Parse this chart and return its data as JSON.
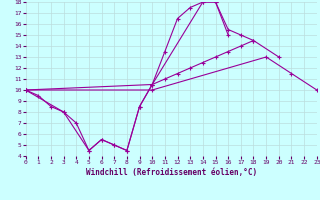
{
  "xlabel": "Windchill (Refroidissement éolien,°C)",
  "series": [
    {
      "x": [
        0,
        1,
        2,
        3,
        4,
        5,
        6,
        7,
        8,
        9,
        10,
        11,
        12,
        13,
        14,
        15,
        16
      ],
      "y": [
        10,
        9.5,
        8.5,
        8.0,
        7.0,
        4.5,
        5.5,
        5.0,
        4.5,
        8.5,
        10.5,
        13.5,
        16.5,
        17.5,
        18.0,
        18.0,
        15.0
      ]
    },
    {
      "x": [
        0,
        3,
        5,
        6,
        7,
        8,
        9,
        10,
        14,
        15,
        16,
        17,
        18
      ],
      "y": [
        10,
        8.0,
        4.5,
        5.5,
        5.0,
        4.5,
        8.5,
        10.5,
        18.0,
        18.0,
        15.5,
        15.0,
        14.5
      ]
    },
    {
      "x": [
        0,
        10,
        11,
        12,
        13,
        14,
        15,
        16,
        17,
        18,
        20
      ],
      "y": [
        10,
        10.5,
        11.0,
        11.5,
        12.0,
        12.5,
        13.0,
        13.5,
        14.0,
        14.5,
        13.0
      ]
    },
    {
      "x": [
        0,
        10,
        19,
        21,
        23
      ],
      "y": [
        10,
        10.0,
        13.0,
        11.5,
        10.0
      ]
    }
  ],
  "line_color": "#990099",
  "marker": "+",
  "bg_color": "#ccffff",
  "grid_color": "#bbdddd",
  "ylim": [
    4,
    18
  ],
  "xlim": [
    0,
    23
  ],
  "yticks": [
    4,
    5,
    6,
    7,
    8,
    9,
    10,
    11,
    12,
    13,
    14,
    15,
    16,
    17,
    18
  ],
  "xticks": [
    0,
    1,
    2,
    3,
    4,
    5,
    6,
    7,
    8,
    9,
    10,
    11,
    12,
    13,
    14,
    15,
    16,
    17,
    18,
    19,
    20,
    21,
    22,
    23
  ]
}
